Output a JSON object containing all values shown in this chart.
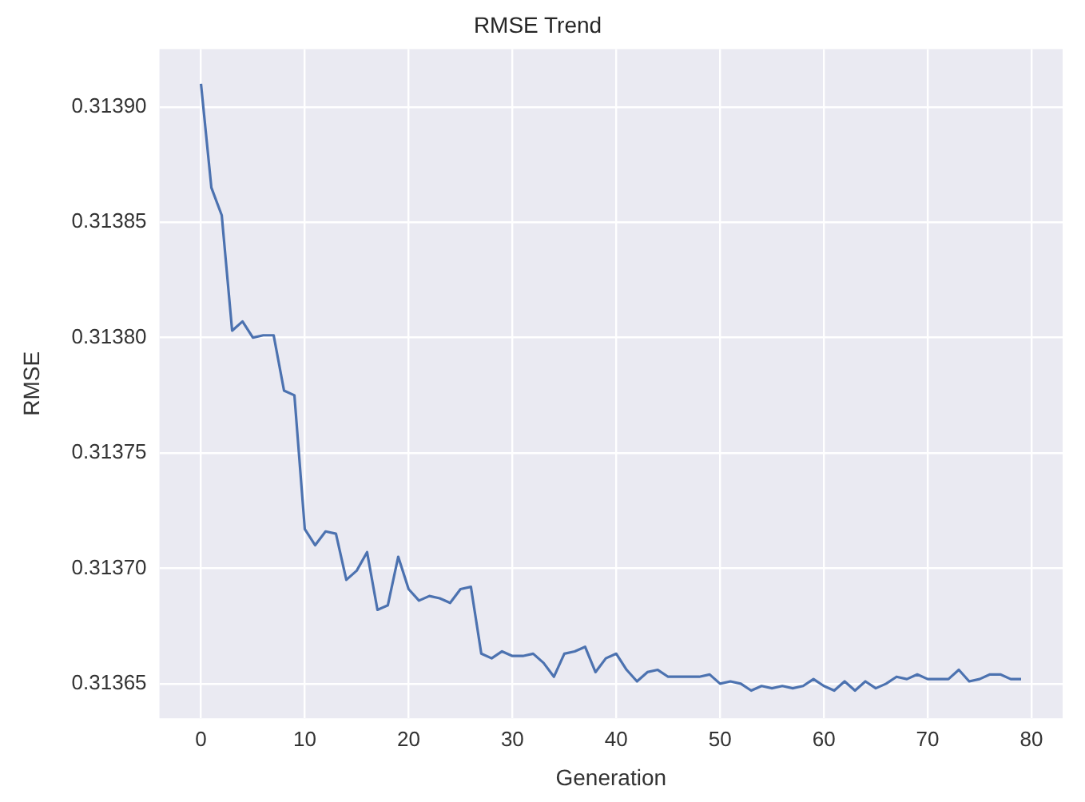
{
  "chart_data": {
    "type": "line",
    "title": "RMSE Trend",
    "xlabel": "Generation",
    "ylabel": "RMSE",
    "x": [
      0,
      1,
      2,
      3,
      4,
      5,
      6,
      7,
      8,
      9,
      10,
      11,
      12,
      13,
      14,
      15,
      16,
      17,
      18,
      19,
      20,
      21,
      22,
      23,
      24,
      25,
      26,
      27,
      28,
      29,
      30,
      31,
      32,
      33,
      34,
      35,
      36,
      37,
      38,
      39,
      40,
      41,
      42,
      43,
      44,
      45,
      46,
      47,
      48,
      49,
      50,
      51,
      52,
      53,
      54,
      55,
      56,
      57,
      58,
      59,
      60,
      61,
      62,
      63,
      64,
      65,
      66,
      67,
      68,
      69,
      70,
      71,
      72,
      73,
      74,
      75,
      76,
      77,
      78,
      79
    ],
    "series": [
      {
        "color": "#4c72b0",
        "values": [
          0.31391,
          0.313865,
          0.313853,
          0.313803,
          0.313807,
          0.3138,
          0.313801,
          0.313801,
          0.313777,
          0.313775,
          0.313717,
          0.31371,
          0.313716,
          0.313715,
          0.313695,
          0.313699,
          0.313707,
          0.313682,
          0.313684,
          0.313705,
          0.313691,
          0.313686,
          0.313688,
          0.313687,
          0.313685,
          0.313691,
          0.313692,
          0.313663,
          0.313661,
          0.313664,
          0.313662,
          0.313662,
          0.313663,
          0.313659,
          0.313653,
          0.313663,
          0.313664,
          0.313666,
          0.313655,
          0.313661,
          0.313663,
          0.313656,
          0.313651,
          0.313655,
          0.313656,
          0.313653,
          0.313653,
          0.313653,
          0.313653,
          0.313654,
          0.31365,
          0.313651,
          0.31365,
          0.313647,
          0.313649,
          0.313648,
          0.313649,
          0.313648,
          0.313649,
          0.313652,
          0.313649,
          0.313647,
          0.313651,
          0.313647,
          0.313651,
          0.313648,
          0.31365,
          0.313653,
          0.313652,
          0.313654,
          0.313652,
          0.313652,
          0.313652,
          0.313656,
          0.313651,
          0.313652,
          0.313654,
          0.313654,
          0.313652,
          0.313652
        ]
      }
    ],
    "xlim": [
      -4,
      83
    ],
    "xticks": [
      0,
      10,
      20,
      30,
      40,
      50,
      60,
      70,
      80
    ],
    "ylim": [
      0.313635,
      0.313925
    ],
    "yticks": [
      {
        "value": 0.31365,
        "label": "0.31365"
      },
      {
        "value": 0.3137,
        "label": "0.31370"
      },
      {
        "value": 0.31375,
        "label": "0.31375"
      },
      {
        "value": 0.3138,
        "label": "0.31380"
      },
      {
        "value": 0.31385,
        "label": "0.31385"
      },
      {
        "value": 0.3139,
        "label": "0.31390"
      }
    ],
    "grid": true,
    "legend": false,
    "marker": "none",
    "line_style": "solid"
  }
}
